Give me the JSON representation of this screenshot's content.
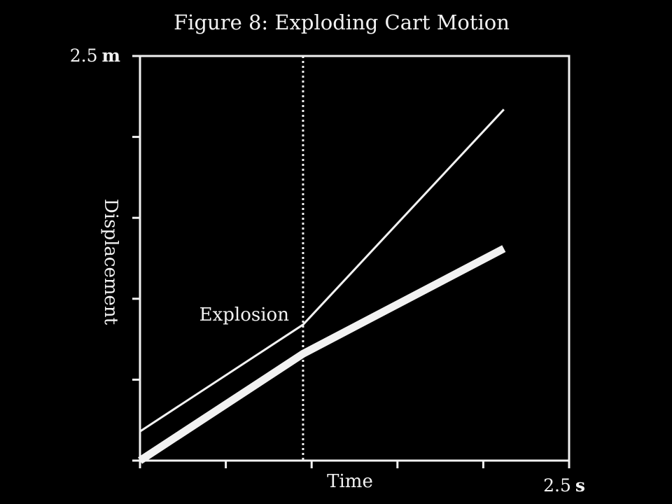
{
  "chart_data": {
    "type": "line",
    "title": "Figure 8: Exploding Cart Motion",
    "xlabel": "Time",
    "ylabel": "Displacement",
    "xlim": [
      0,
      2.5
    ],
    "ylim": [
      0,
      2.5
    ],
    "x_end_label": {
      "number": "2.5",
      "unit": "s"
    },
    "y_end_label": {
      "number": "2.5",
      "unit": "m"
    },
    "x_ticks": [
      0,
      0.5,
      1.0,
      1.5,
      2.0,
      2.5
    ],
    "y_ticks": [
      0,
      0.5,
      1.0,
      1.5,
      2.0,
      2.5
    ],
    "grid": false,
    "series": [
      {
        "style": "thin",
        "x": [
          0,
          0.95,
          2.12
        ],
        "y": [
          0.18,
          0.84,
          2.17
        ]
      },
      {
        "style": "thick",
        "x": [
          0,
          0.95,
          2.12
        ],
        "y": [
          0.0,
          0.66,
          1.31
        ]
      }
    ],
    "annotations": [
      {
        "type": "vline",
        "x": 0.95,
        "style": "dotted"
      },
      {
        "type": "text",
        "text": "Explosion",
        "x": 0.95,
        "y": 0.9
      }
    ],
    "colors": {
      "background": "#000000",
      "foreground": "#f2f2f2"
    }
  }
}
